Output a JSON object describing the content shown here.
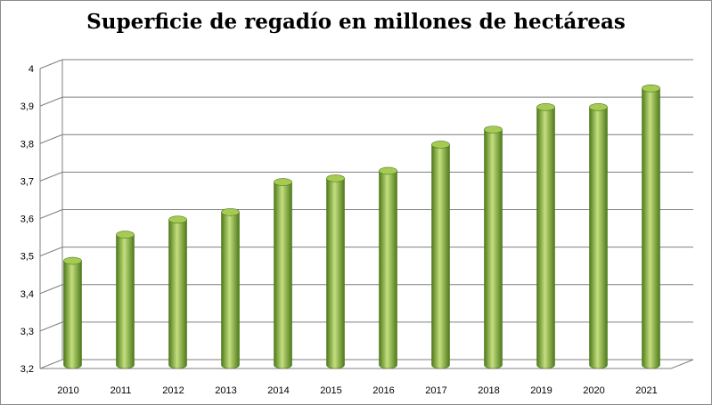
{
  "chart_data": {
    "type": "bar",
    "title": "Superficie de regadío en millones de hectáreas",
    "xlabel": "",
    "ylabel": "",
    "categories": [
      "2010",
      "2011",
      "2012",
      "2013",
      "2014",
      "2015",
      "2016",
      "2017",
      "2018",
      "2019",
      "2020",
      "2021"
    ],
    "values": [
      3.48,
      3.55,
      3.59,
      3.61,
      3.69,
      3.7,
      3.72,
      3.79,
      3.83,
      3.89,
      3.89,
      3.94
    ],
    "ylim": [
      3.2,
      4.0
    ],
    "yticks": [
      "3,2",
      "3,3",
      "3,4",
      "3,5",
      "3,6",
      "3,7",
      "3,8",
      "3,9",
      "4"
    ],
    "grid": true,
    "legend": "none",
    "colors": {
      "bar": "#8db53d",
      "bar_dark": "#4f7a1a",
      "bar_light": "#c4df7f",
      "top": "#a6cb55",
      "grid": "#7f7f7f"
    }
  }
}
